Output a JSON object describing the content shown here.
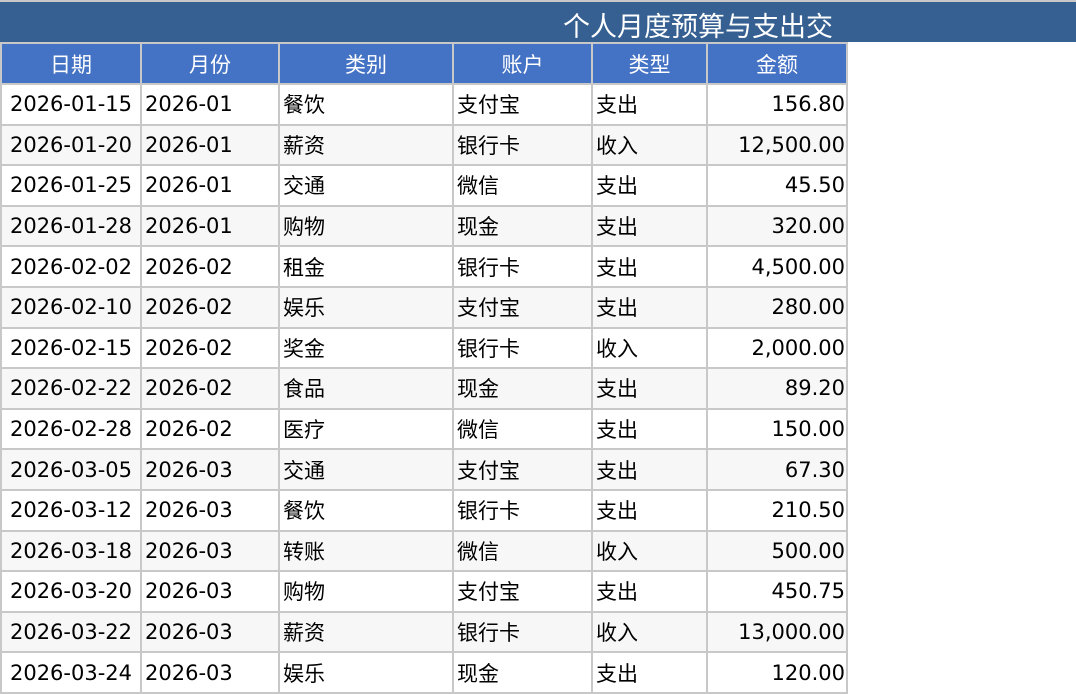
{
  "title": "个人月度预算与支出交",
  "colors": {
    "title_bg": "#366092",
    "header_bg": "#4472C4",
    "alt_row": "#F7F7F7"
  },
  "columns": [
    "日期",
    "月份",
    "类别",
    "账户",
    "类型",
    "金额"
  ],
  "rows": [
    [
      "2026-01-15",
      "2026-01",
      "餐饮",
      "支付宝",
      "支出",
      "156.80"
    ],
    [
      "2026-01-20",
      "2026-01",
      "薪资",
      "银行卡",
      "收入",
      "12,500.00"
    ],
    [
      "2026-01-25",
      "2026-01",
      "交通",
      "微信",
      "支出",
      "45.50"
    ],
    [
      "2026-01-28",
      "2026-01",
      "购物",
      "现金",
      "支出",
      "320.00"
    ],
    [
      "2026-02-02",
      "2026-02",
      "租金",
      "银行卡",
      "支出",
      "4,500.00"
    ],
    [
      "2026-02-10",
      "2026-02",
      "娱乐",
      "支付宝",
      "支出",
      "280.00"
    ],
    [
      "2026-02-15",
      "2026-02",
      "奖金",
      "银行卡",
      "收入",
      "2,000.00"
    ],
    [
      "2026-02-22",
      "2026-02",
      "食品",
      "现金",
      "支出",
      "89.20"
    ],
    [
      "2026-02-28",
      "2026-02",
      "医疗",
      "微信",
      "支出",
      "150.00"
    ],
    [
      "2026-03-05",
      "2026-03",
      "交通",
      "支付宝",
      "支出",
      "67.30"
    ],
    [
      "2026-03-12",
      "2026-03",
      "餐饮",
      "银行卡",
      "支出",
      "210.50"
    ],
    [
      "2026-03-18",
      "2026-03",
      "转账",
      "微信",
      "收入",
      "500.00"
    ],
    [
      "2026-03-20",
      "2026-03",
      "购物",
      "支付宝",
      "支出",
      "450.75"
    ],
    [
      "2026-03-22",
      "2026-03",
      "薪资",
      "银行卡",
      "收入",
      "13,000.00"
    ],
    [
      "2026-03-24",
      "2026-03",
      "娱乐",
      "现金",
      "支出",
      "120.00"
    ]
  ]
}
